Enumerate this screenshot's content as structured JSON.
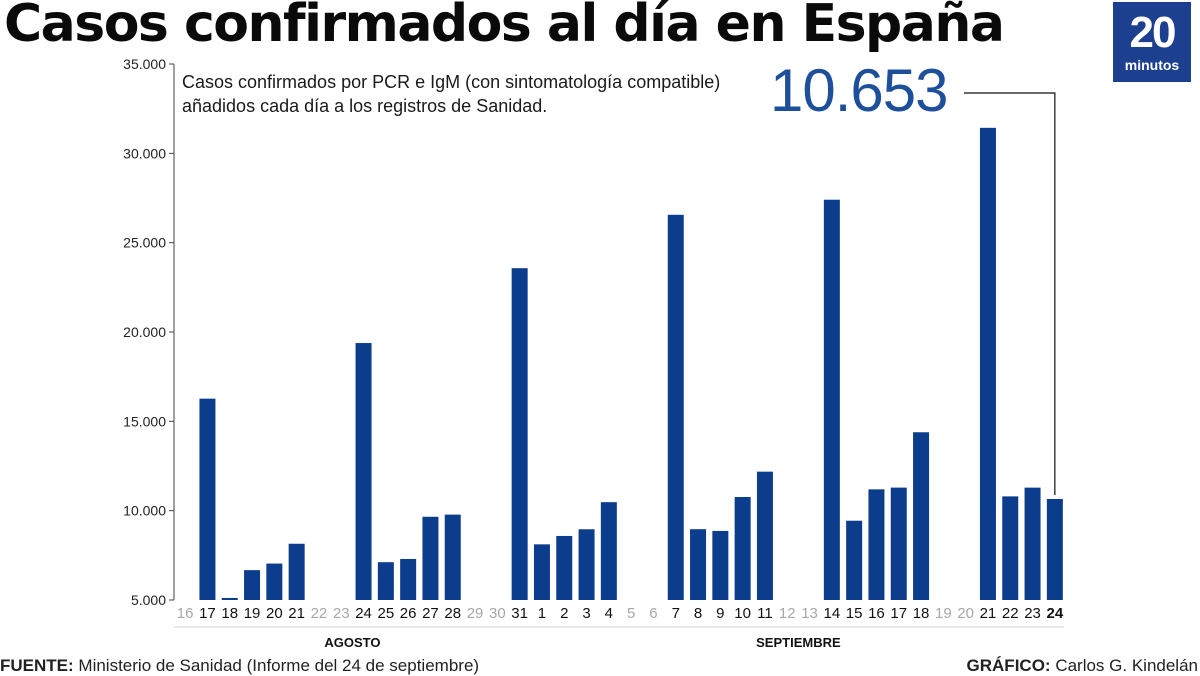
{
  "title": "Casos confirmados al día en España",
  "logo": {
    "number": "20",
    "word": "minutos"
  },
  "subtitle": "Casos confirmados por PCR e IgM (con sintomatología compatible) añadidos cada día a los registros de Sanidad.",
  "highlight_value": "10.653",
  "source": {
    "label": "FUENTE:",
    "text": "Ministerio de Sanidad (Informe del 24 de septiembre)"
  },
  "credit": {
    "label": "GRÁFICO:",
    "text": "Carlos G. Kindelán"
  },
  "colors": {
    "bar": "#0c3d8c",
    "highlight": "#1d4f9a",
    "missing_label": "#a8a8a8",
    "axis": "#444444"
  },
  "chart_data": {
    "type": "bar",
    "title": "Casos confirmados al día en España",
    "ylim": [
      5000,
      35000
    ],
    "yticks": [
      5000,
      10000,
      15000,
      20000,
      25000,
      30000,
      35000
    ],
    "ytick_labels": [
      "5.000",
      "10.000",
      "15.000",
      "20.000",
      "25.000",
      "30.000",
      "35.000"
    ],
    "month_labels": [
      {
        "label": "AGOSTO",
        "from": 0,
        "to": 15
      },
      {
        "label": "SEPTIEMBRE",
        "from": 16,
        "to": 39
      }
    ],
    "categories": [
      "16",
      "17",
      "18",
      "19",
      "20",
      "21",
      "22",
      "23",
      "24",
      "25",
      "26",
      "27",
      "28",
      "29",
      "30",
      "31",
      "1",
      "2",
      "3",
      "4",
      "5",
      "6",
      "7",
      "8",
      "9",
      "10",
      "11",
      "12",
      "13",
      "14",
      "15",
      "16",
      "17",
      "18",
      "19",
      "20",
      "21",
      "22",
      "23",
      "24"
    ],
    "values": [
      null,
      16269,
      5114,
      6671,
      7039,
      8148,
      null,
      null,
      19382,
      7117,
      7296,
      9658,
      9779,
      null,
      null,
      23572,
      8115,
      8584,
      8959,
      10476,
      null,
      null,
      26560,
      8964,
      8866,
      10764,
      12183,
      null,
      null,
      27404,
      9437,
      11193,
      11291,
      14389,
      null,
      null,
      31428,
      10799,
      11289,
      10653
    ]
  }
}
